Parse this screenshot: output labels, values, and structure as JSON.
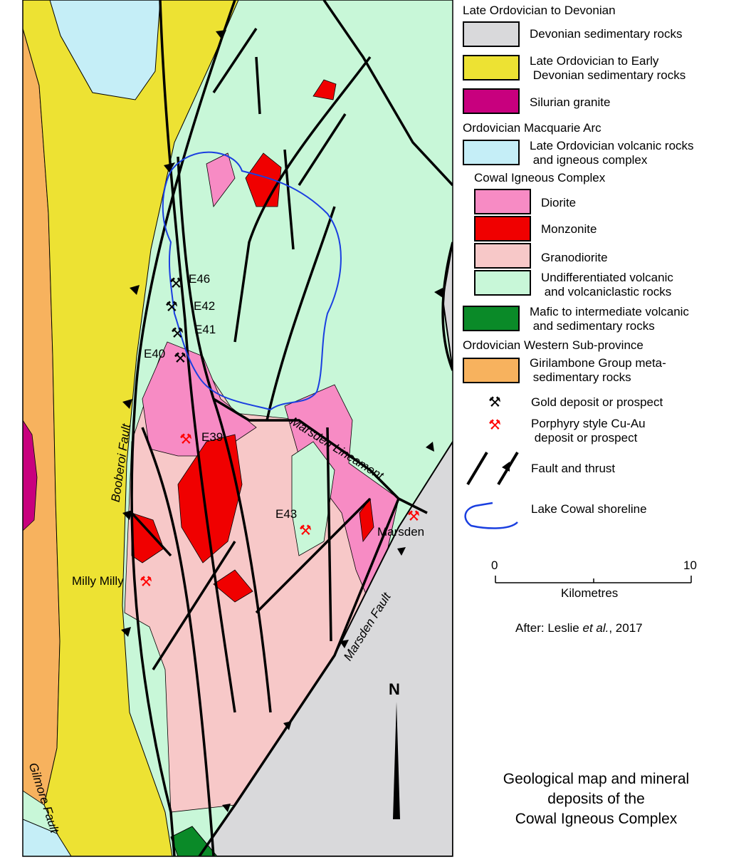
{
  "legend": {
    "groups": {
      "g1": "Late Ordovician to Devonian",
      "g2": "Ordovician Macquarie Arc",
      "g3": "Cowal Igneous Complex",
      "g4": "Ordovician Western Sub-province"
    },
    "units": [
      {
        "label": "Devonian sedimentary rocks",
        "color": "#d9d9db"
      },
      {
        "label": "Late Ordovician to Early\n Devonian sedimentary rocks",
        "color": "#ede233"
      },
      {
        "label": "Silurian granite",
        "color": "#c8007e"
      },
      {
        "label": "Late Ordovician volcanic rocks\n and igneous complex",
        "color": "#c5eef7"
      },
      {
        "label": "Diorite",
        "color": "#f78bc4"
      },
      {
        "label": "Monzonite",
        "color": "#f00000"
      },
      {
        "label": "Granodiorite",
        "color": "#f7c8c8"
      },
      {
        "label": "Undifferentiated volcanic\n and volcaniclastic rocks",
        "color": "#c8f7d8"
      },
      {
        "label": "Mafic to intermediate volcanic\n and sedimentary rocks",
        "color": "#0a8a28"
      },
      {
        "label": "Girilambone Group meta-\n sedimentary rocks",
        "color": "#f7b25e"
      }
    ],
    "symbols": {
      "gold": "Gold deposit or prospect",
      "porphyry": "Porphyry style Cu-Au\n deposit or prospect",
      "fault": "Fault and thrust",
      "shoreline": "Lake Cowal shoreline"
    },
    "icons": {
      "gold": "crossed-hammers-black",
      "porphyry": "crossed-hammers-red"
    }
  },
  "scale": {
    "min": "0",
    "max": "10",
    "unit": "Kilometres"
  },
  "attribution": {
    "prefix": "After: Leslie ",
    "etal": "et al.",
    "suffix": ", 2017"
  },
  "north": "N",
  "title": {
    "line1": "Geological map and mineral",
    "line2": "deposits of the",
    "line3": "Cowal Igneous Complex"
  },
  "map": {
    "labels": {
      "e46": "E46",
      "e42": "E42",
      "e41": "E41",
      "e40": "E40",
      "e39": "E39",
      "e43": "E43",
      "marsden": "Marsden",
      "milly": "Milly Milly",
      "booberoi": "Booberoi Fault",
      "gilmore": "Gilmore Fault",
      "lineament": "Marsden Lineament",
      "marsden_fault": "Marsden Fault"
    },
    "shoreline_color": "#1a3fe0"
  }
}
